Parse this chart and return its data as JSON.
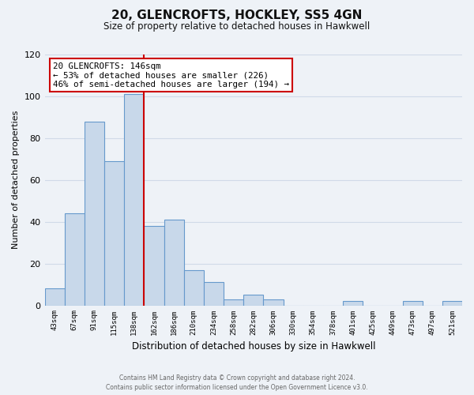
{
  "title": "20, GLENCROFTS, HOCKLEY, SS5 4GN",
  "subtitle": "Size of property relative to detached houses in Hawkwell",
  "xlabel": "Distribution of detached houses by size in Hawkwell",
  "ylabel": "Number of detached properties",
  "bin_labels": [
    "43sqm",
    "67sqm",
    "91sqm",
    "115sqm",
    "138sqm",
    "162sqm",
    "186sqm",
    "210sqm",
    "234sqm",
    "258sqm",
    "282sqm",
    "306sqm",
    "330sqm",
    "354sqm",
    "378sqm",
    "401sqm",
    "425sqm",
    "449sqm",
    "473sqm",
    "497sqm",
    "521sqm"
  ],
  "bar_heights": [
    8,
    44,
    88,
    69,
    101,
    38,
    41,
    17,
    11,
    3,
    5,
    3,
    0,
    0,
    0,
    2,
    0,
    0,
    2,
    0,
    2
  ],
  "bar_color": "#c8d8ea",
  "bar_edge_color": "#6699cc",
  "vline_x": 4.5,
  "vline_color": "#cc0000",
  "annotation_title": "20 GLENCROFTS: 146sqm",
  "annotation_line1": "← 53% of detached houses are smaller (226)",
  "annotation_line2": "46% of semi-detached houses are larger (194) →",
  "annotation_box_color": "#ffffff",
  "annotation_box_edge": "#cc0000",
  "ylim": [
    0,
    120
  ],
  "yticks": [
    0,
    20,
    40,
    60,
    80,
    100,
    120
  ],
  "footer1": "Contains HM Land Registry data © Crown copyright and database right 2024.",
  "footer2": "Contains public sector information licensed under the Open Government Licence v3.0.",
  "background_color": "#eef2f7",
  "grid_color": "#d0dae8"
}
